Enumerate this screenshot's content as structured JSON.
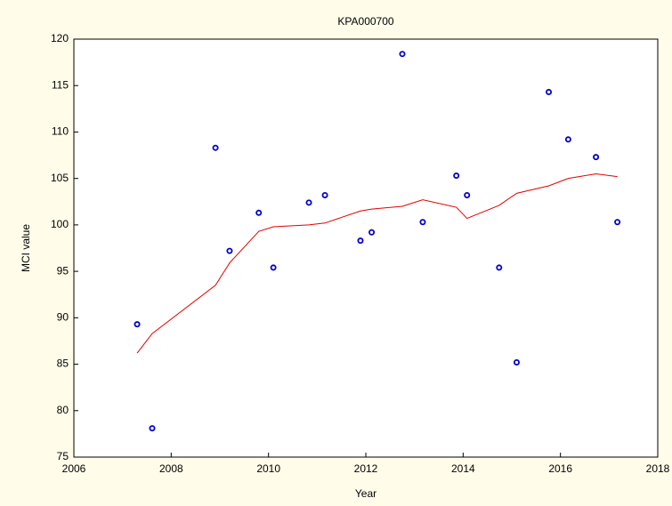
{
  "chart_data": {
    "type": "scatter",
    "title": "KPA000700",
    "xlabel": "Year",
    "ylabel": "MCI value",
    "x": [
      2007.3,
      2007.61,
      2008.91,
      2009.2,
      2009.8,
      2010.1,
      2010.83,
      2011.16,
      2011.89,
      2012.12,
      2012.75,
      2013.17,
      2013.86,
      2014.08,
      2014.74,
      2015.1,
      2015.76,
      2016.16,
      2016.73,
      2017.17
    ],
    "series": [
      {
        "type": "scatter",
        "color": "#0000cc",
        "values": [
          89.3,
          78.1,
          108.3,
          97.2,
          101.3,
          95.4,
          102.4,
          103.2,
          98.3,
          99.2,
          118.4,
          100.3,
          105.3,
          103.2,
          95.4,
          85.2,
          114.3,
          109.2,
          107.3,
          100.3
        ]
      },
      {
        "type": "line",
        "color": "#e00000",
        "values": [
          86.2,
          88.3,
          93.5,
          95.9,
          99.3,
          99.8,
          100.0,
          100.2,
          101.5,
          101.7,
          102.0,
          102.7,
          101.9,
          100.7,
          102.1,
          103.4,
          104.2,
          105.0,
          105.5,
          105.2
        ]
      }
    ],
    "xlim": [
      2006,
      2018
    ],
    "xticks": [
      2006,
      2008,
      2010,
      2012,
      2014,
      2016,
      2018
    ],
    "ylim": [
      75,
      120
    ],
    "yticks": [
      75,
      80,
      85,
      90,
      95,
      100,
      105,
      110,
      115,
      120
    ],
    "grid": false
  }
}
